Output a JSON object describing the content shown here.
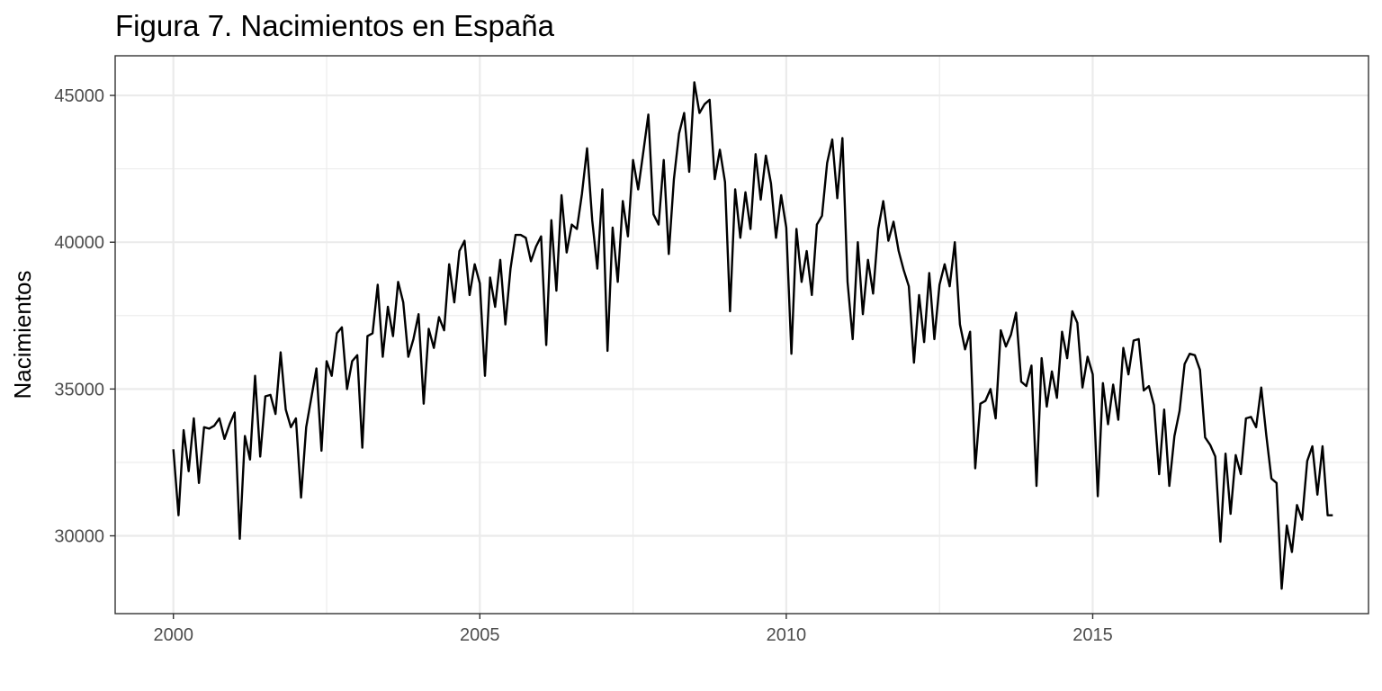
{
  "chart_data": {
    "type": "line",
    "title": "Figura 7. Nacimientos en España",
    "xlabel": "",
    "ylabel": "Nacimientos",
    "x_ticks": [
      "2000",
      "2005",
      "2010",
      "2015"
    ],
    "y_ticks": [
      "30000",
      "35000",
      "40000",
      "45000"
    ],
    "xlim": [
      1999.05,
      2019.5
    ],
    "ylim": [
      27350,
      46350
    ],
    "grid": true,
    "legend": "none",
    "line_color": "#000000",
    "x_start": "2000-01",
    "x_frequency": "monthly",
    "series": [
      {
        "values": [
          32950,
          30700,
          33600,
          32200,
          34000,
          31800,
          33700,
          33650,
          33750,
          34000,
          33300,
          33800,
          34200,
          29900,
          33400,
          32600,
          35450,
          32700,
          34750,
          34800,
          34150,
          36250,
          34300,
          33700,
          34000,
          31300,
          33700,
          34700,
          35700,
          32900,
          35950,
          35450,
          36900,
          37100,
          35000,
          35950,
          36150,
          33000,
          36800,
          36900,
          38550,
          36100,
          37800,
          36800,
          38650,
          37950,
          36100,
          36700,
          37550,
          34500,
          37050,
          36400,
          37450,
          37000,
          39250,
          37950,
          39700,
          40050,
          38200,
          39250,
          38600,
          35450,
          38800,
          37800,
          39400,
          37200,
          39100,
          40250,
          40250,
          40150,
          39350,
          39850,
          40200,
          36500,
          40750,
          38350,
          41600,
          39650,
          40600,
          40450,
          41650,
          43200,
          40750,
          39100,
          41800,
          36300,
          40500,
          38650,
          41400,
          40200,
          42800,
          41800,
          43050,
          44350,
          40950,
          40600,
          42800,
          39600,
          42150,
          43700,
          44400,
          42400,
          45450,
          44400,
          44700,
          44850,
          42150,
          43150,
          42050,
          37650,
          41800,
          40150,
          41700,
          40450,
          43000,
          41450,
          42950,
          42000,
          40150,
          41600,
          40500,
          36200,
          40450,
          38650,
          39700,
          38200,
          40600,
          40900,
          42700,
          43500,
          41500,
          43550,
          38650,
          36700,
          40000,
          37550,
          39400,
          38250,
          40450,
          41400,
          40050,
          40700,
          39700,
          39050,
          38500,
          35900,
          38200,
          36600,
          38950,
          36700,
          38550,
          39250,
          38500,
          40000,
          37200,
          36350,
          36950,
          32300,
          34500,
          34600,
          35000,
          34000,
          37000,
          36450,
          36850,
          37600,
          35250,
          35100,
          35800,
          31700,
          36050,
          34400,
          35600,
          34700,
          36950,
          36050,
          37650,
          37250,
          35050,
          36100,
          35500,
          31350,
          35200,
          33800,
          35150,
          33950,
          36400,
          35500,
          36650,
          36700,
          34950,
          35100,
          34450,
          32100,
          34300,
          31700,
          33400,
          34250,
          35850,
          36200,
          36150,
          35650,
          33350,
          33100,
          32700,
          29800,
          32800,
          30750,
          32750,
          32100,
          34000,
          34050,
          33700,
          35050,
          33400,
          31950,
          31800,
          28200,
          30350,
          29450,
          31050,
          30550,
          32550,
          33050,
          31400,
          33050,
          30700,
          30700
        ]
      }
    ]
  }
}
